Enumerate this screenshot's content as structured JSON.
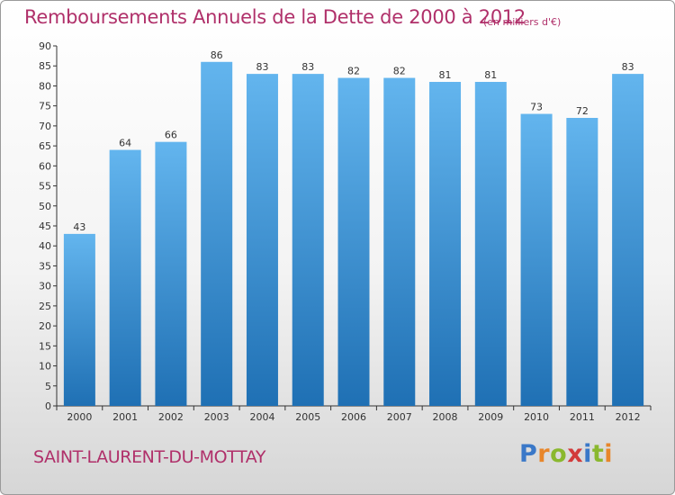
{
  "title": "Remboursements Annuels de la Dette de 2000 à 2012",
  "unit": "(en milliers d'€)",
  "commune": "SAINT-LAURENT-DU-MOTTAY",
  "logo": {
    "text": "Proxiti",
    "colors": [
      "#3a78c8",
      "#e8862a",
      "#8ab82e",
      "#d23a3a",
      "#3a78c8",
      "#8ab82e",
      "#e8862a"
    ]
  },
  "colors": {
    "bar_light": "#63b5ee",
    "bar_dark": "#1f70b4",
    "title": "#b0306a"
  },
  "chart_data": {
    "type": "bar",
    "title": "Remboursements Annuels de la Dette de 2000 à 2012",
    "categories": [
      "2000",
      "2001",
      "2002",
      "2003",
      "2004",
      "2005",
      "2006",
      "2007",
      "2008",
      "2009",
      "2010",
      "2011",
      "2012"
    ],
    "values": [
      43,
      64,
      66,
      86,
      83,
      83,
      82,
      82,
      81,
      81,
      73,
      72,
      83
    ],
    "ylim": [
      0,
      90
    ],
    "yticks": [
      "0",
      "5",
      "10",
      "15",
      "20",
      "25",
      "30",
      "35",
      "40",
      "45",
      "50",
      "55",
      "60",
      "65",
      "70",
      "75",
      "80",
      "85",
      "90"
    ],
    "grid": false,
    "legend": "none",
    "data_labels": true
  }
}
